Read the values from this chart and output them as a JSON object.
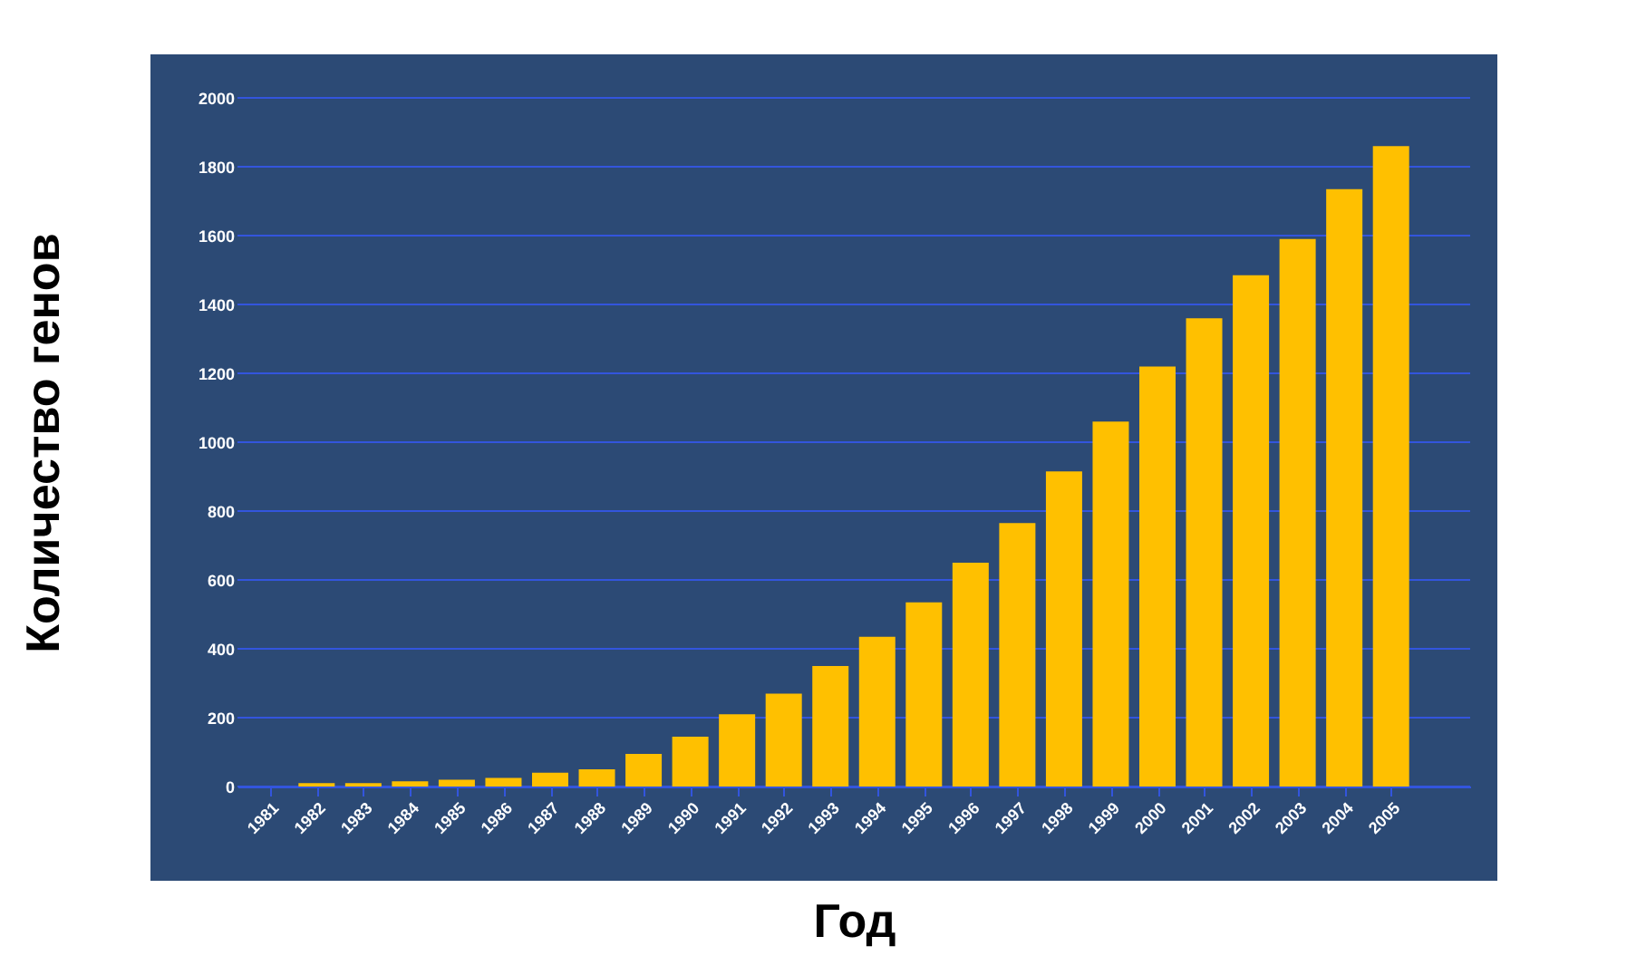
{
  "chart_data": {
    "type": "bar",
    "xlabel": "Год",
    "ylabel": "Количество генов",
    "categories": [
      "1981",
      "1982",
      "1983",
      "1984",
      "1985",
      "1986",
      "1987",
      "1988",
      "1989",
      "1990",
      "1991",
      "1992",
      "1993",
      "1994",
      "1995",
      "1996",
      "1997",
      "1998",
      "1999",
      "2000",
      "2001",
      "2002",
      "2003",
      "2004",
      "2005"
    ],
    "values": [
      0,
      10,
      10,
      15,
      20,
      25,
      40,
      50,
      95,
      145,
      210,
      270,
      350,
      435,
      535,
      650,
      765,
      915,
      1060,
      1220,
      1360,
      1485,
      1590,
      1735,
      1860
    ],
    "color": "#ffc000",
    "ylim": [
      0,
      2000
    ],
    "yticks": [
      0,
      200,
      400,
      600,
      800,
      1000,
      1200,
      1400,
      1600,
      1800,
      2000
    ],
    "grid": "y"
  }
}
